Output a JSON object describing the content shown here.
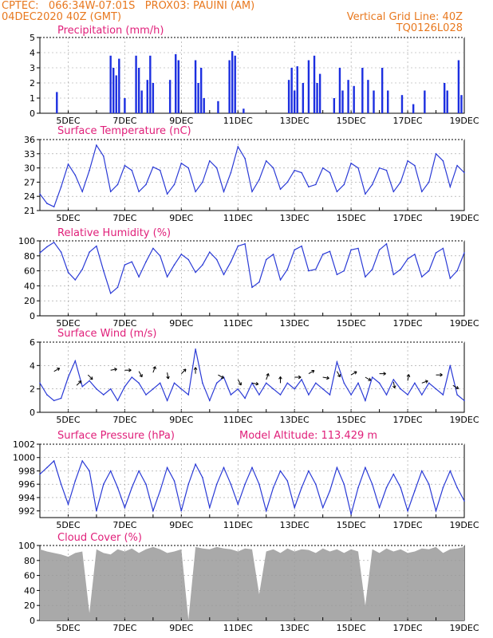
{
  "header": {
    "line1": "CPTEC:   066:34W-07:01S   PROX03: PAUINI (AM)",
    "line2": "04DEC2020 40Z (GMT)",
    "right1": "Vertical Grid Line: 40Z",
    "right2": "TQ0126L028"
  },
  "x_ticks": [
    "5DEC",
    "7DEC",
    "9DEC",
    "11DEC",
    "13DEC",
    "15DEC",
    "17DEC",
    "19DEC"
  ],
  "colors": {
    "header": "#e8781e",
    "title": "#e0207a",
    "line": "#2a3ad6",
    "bar": "#1c2fe0",
    "cloud": "#a9a9a9",
    "grid": "#9a9a9a"
  },
  "chart_data": [
    {
      "type": "bar",
      "title": "Precipitation (mm/h)",
      "ylim": [
        0,
        5
      ],
      "y_ticks": [
        0,
        1,
        2,
        3,
        4,
        5
      ],
      "events": [
        [
          4.6,
          1.4
        ],
        [
          6.5,
          3.8
        ],
        [
          6.6,
          3.0
        ],
        [
          6.7,
          2.5
        ],
        [
          6.8,
          3.6
        ],
        [
          7.0,
          1.0
        ],
        [
          7.4,
          3.8
        ],
        [
          7.5,
          3.0
        ],
        [
          7.6,
          1.5
        ],
        [
          7.8,
          2.2
        ],
        [
          7.9,
          3.8
        ],
        [
          8.0,
          2.0
        ],
        [
          8.6,
          2.2
        ],
        [
          8.8,
          3.9
        ],
        [
          8.9,
          3.5
        ],
        [
          9.5,
          3.5
        ],
        [
          9.6,
          2.0
        ],
        [
          9.7,
          3.0
        ],
        [
          9.8,
          1.0
        ],
        [
          10.3,
          0.8
        ],
        [
          10.7,
          3.5
        ],
        [
          10.8,
          4.1
        ],
        [
          10.9,
          3.8
        ],
        [
          11.2,
          0.3
        ],
        [
          12.8,
          2.2
        ],
        [
          12.9,
          3.0
        ],
        [
          13.0,
          1.5
        ],
        [
          13.1,
          3.1
        ],
        [
          13.3,
          2.0
        ],
        [
          13.5,
          3.5
        ],
        [
          13.7,
          3.8
        ],
        [
          13.8,
          2.0
        ],
        [
          13.9,
          2.6
        ],
        [
          14.4,
          1.0
        ],
        [
          14.6,
          3.0
        ],
        [
          14.7,
          1.5
        ],
        [
          14.9,
          2.2
        ],
        [
          15.1,
          1.8
        ],
        [
          15.4,
          3.0
        ],
        [
          15.6,
          2.2
        ],
        [
          15.8,
          1.5
        ],
        [
          16.1,
          3.0
        ],
        [
          16.3,
          1.5
        ],
        [
          16.8,
          1.2
        ],
        [
          17.2,
          0.6
        ],
        [
          17.6,
          1.5
        ],
        [
          18.3,
          2.0
        ],
        [
          18.4,
          1.5
        ],
        [
          18.8,
          3.5
        ],
        [
          18.9,
          1.2
        ]
      ]
    },
    {
      "type": "line",
      "title": "Surface Temperature (nC)",
      "ylim": [
        21,
        36
      ],
      "y_ticks": [
        21,
        24,
        27,
        30,
        33,
        36
      ],
      "x": [
        4.0,
        4.25,
        4.5,
        4.75,
        5.0,
        5.25,
        5.5,
        5.75,
        6.0,
        6.25,
        6.5,
        6.75,
        7.0,
        7.25,
        7.5,
        7.75,
        8.0,
        8.25,
        8.5,
        8.75,
        9.0,
        9.25,
        9.5,
        9.75,
        10.0,
        10.25,
        10.5,
        10.75,
        11.0,
        11.25,
        11.5,
        11.75,
        12.0,
        12.25,
        12.5,
        12.75,
        13.0,
        13.25,
        13.5,
        13.75,
        14.0,
        14.25,
        14.5,
        14.75,
        15.0,
        15.25,
        15.5,
        15.75,
        16.0,
        16.25,
        16.5,
        16.75,
        17.0,
        17.25,
        17.5,
        17.75,
        18.0,
        18.25,
        18.5,
        18.75,
        19.0
      ],
      "y": [
        24.5,
        22.5,
        21.8,
        26.0,
        30.8,
        28.5,
        25.0,
        29.5,
        34.8,
        32.5,
        25.0,
        26.5,
        30.5,
        29.5,
        25.0,
        26.5,
        30.2,
        29.5,
        24.5,
        26.5,
        31.0,
        30.0,
        25.0,
        27.0,
        31.5,
        30.0,
        25.0,
        29.0,
        34.5,
        32.0,
        25.0,
        27.5,
        31.5,
        30.0,
        25.5,
        27.0,
        29.5,
        29.0,
        26.0,
        26.5,
        30.0,
        29.0,
        25.0,
        26.5,
        31.0,
        30.0,
        24.5,
        26.5,
        30.0,
        29.5,
        25.0,
        27.0,
        31.5,
        30.5,
        25.0,
        27.0,
        33.0,
        31.5,
        26.0,
        30.5,
        29.0
      ]
    },
    {
      "type": "line",
      "title": "Relative Humidity (%)",
      "ylim": [
        0,
        100
      ],
      "y_ticks": [
        0,
        20,
        40,
        60,
        80,
        100
      ],
      "x": [
        4.0,
        4.25,
        4.5,
        4.75,
        5.0,
        5.25,
        5.5,
        5.75,
        6.0,
        6.25,
        6.5,
        6.75,
        7.0,
        7.25,
        7.5,
        7.75,
        8.0,
        8.25,
        8.5,
        8.75,
        9.0,
        9.25,
        9.5,
        9.75,
        10.0,
        10.25,
        10.5,
        10.75,
        11.0,
        11.25,
        11.5,
        11.75,
        12.0,
        12.25,
        12.5,
        12.75,
        13.0,
        13.25,
        13.5,
        13.75,
        14.0,
        14.25,
        14.5,
        14.75,
        15.0,
        15.25,
        15.5,
        15.75,
        16.0,
        16.25,
        16.5,
        16.75,
        17.0,
        17.25,
        17.5,
        17.75,
        18.0,
        18.25,
        18.5,
        18.75,
        19.0
      ],
      "y": [
        84,
        92,
        98,
        85,
        58,
        48,
        62,
        85,
        93,
        60,
        30,
        38,
        68,
        72,
        52,
        72,
        90,
        80,
        52,
        68,
        82,
        75,
        58,
        68,
        85,
        75,
        55,
        72,
        93,
        96,
        38,
        45,
        75,
        82,
        48,
        62,
        88,
        93,
        60,
        62,
        82,
        86,
        55,
        60,
        88,
        90,
        52,
        62,
        88,
        96,
        55,
        62,
        76,
        82,
        52,
        60,
        84,
        90,
        50,
        60,
        84
      ]
    },
    {
      "type": "line",
      "title": "Surface Wind (m/s)",
      "ylim": [
        0,
        6
      ],
      "y_ticks": [
        0,
        2,
        4,
        6
      ],
      "x": [
        4.0,
        4.25,
        4.5,
        4.75,
        5.0,
        5.25,
        5.5,
        5.75,
        6.0,
        6.25,
        6.5,
        6.75,
        7.0,
        7.25,
        7.5,
        7.75,
        8.0,
        8.25,
        8.5,
        8.75,
        9.0,
        9.25,
        9.5,
        9.75,
        10.0,
        10.25,
        10.5,
        10.75,
        11.0,
        11.25,
        11.5,
        11.75,
        12.0,
        12.25,
        12.5,
        12.75,
        13.0,
        13.25,
        13.5,
        13.75,
        14.0,
        14.25,
        14.5,
        14.75,
        15.0,
        15.25,
        15.5,
        15.75,
        16.0,
        16.25,
        16.5,
        16.75,
        17.0,
        17.25,
        17.5,
        17.75,
        18.0,
        18.25,
        18.5,
        18.75,
        19.0
      ],
      "y": [
        2.5,
        1.5,
        1.0,
        1.2,
        3.0,
        4.4,
        2.2,
        2.7,
        2.0,
        1.5,
        2.0,
        1.0,
        2.2,
        3.0,
        2.5,
        1.5,
        2.0,
        2.5,
        1.0,
        2.5,
        2.0,
        1.5,
        5.4,
        2.5,
        1.0,
        2.5,
        3.0,
        1.5,
        2.0,
        1.2,
        2.5,
        1.5,
        2.5,
        2.0,
        1.5,
        2.5,
        2.0,
        2.8,
        1.5,
        2.5,
        2.0,
        1.5,
        4.3,
        2.5,
        1.5,
        2.5,
        1.0,
        3.0,
        2.5,
        1.5,
        2.8,
        2.0,
        1.5,
        2.5,
        1.5,
        2.5,
        2.0,
        1.5,
        4.0,
        1.5,
        1.0
      ]
    },
    {
      "type": "line",
      "title": "Surface Pressure (hPa)",
      "annotation": "Model Altitude: 113.429 m",
      "ylim": [
        991,
        1002
      ],
      "y_ticks": [
        992,
        994,
        996,
        998,
        1000,
        1002
      ],
      "x": [
        4.0,
        4.25,
        4.5,
        4.75,
        5.0,
        5.25,
        5.5,
        5.75,
        6.0,
        6.25,
        6.5,
        6.75,
        7.0,
        7.25,
        7.5,
        7.75,
        8.0,
        8.25,
        8.5,
        8.75,
        9.0,
        9.25,
        9.5,
        9.75,
        10.0,
        10.25,
        10.5,
        10.75,
        11.0,
        11.25,
        11.5,
        11.75,
        12.0,
        12.25,
        12.5,
        12.75,
        13.0,
        13.25,
        13.5,
        13.75,
        14.0,
        14.25,
        14.5,
        14.75,
        15.0,
        15.25,
        15.5,
        15.75,
        16.0,
        16.25,
        16.5,
        16.75,
        17.0,
        17.25,
        17.5,
        17.75,
        18.0,
        18.25,
        18.5,
        18.75,
        19.0
      ],
      "y": [
        997.5,
        998.5,
        999.5,
        996.0,
        993.0,
        996.5,
        999.5,
        998.0,
        992.0,
        996.0,
        998.0,
        995.5,
        992.5,
        995.5,
        998.0,
        996.0,
        992.0,
        995.0,
        998.5,
        996.5,
        992.0,
        996.0,
        999.0,
        997.0,
        992.5,
        996.0,
        998.5,
        996.0,
        993.0,
        996.0,
        998.5,
        996.0,
        992.0,
        995.5,
        998.0,
        996.5,
        992.5,
        995.5,
        998.0,
        996.0,
        992.5,
        995.0,
        998.5,
        996.0,
        991.5,
        995.5,
        998.5,
        996.0,
        992.5,
        995.5,
        997.5,
        995.5,
        992.0,
        995.0,
        998.0,
        996.0,
        992.0,
        995.5,
        998.0,
        995.5,
        993.5
      ]
    },
    {
      "type": "area",
      "title": "Cloud Cover (%)",
      "ylim": [
        0,
        100
      ],
      "y_ticks": [
        0,
        20,
        40,
        60,
        80,
        100
      ],
      "x": [
        4.0,
        4.25,
        4.5,
        4.75,
        5.0,
        5.25,
        5.5,
        5.75,
        6.0,
        6.25,
        6.5,
        6.75,
        7.0,
        7.25,
        7.5,
        7.75,
        8.0,
        8.25,
        8.5,
        8.75,
        9.0,
        9.25,
        9.5,
        9.75,
        10.0,
        10.25,
        10.5,
        10.75,
        11.0,
        11.25,
        11.5,
        11.75,
        12.0,
        12.25,
        12.5,
        12.75,
        13.0,
        13.25,
        13.5,
        13.75,
        14.0,
        14.25,
        14.5,
        14.75,
        15.0,
        15.25,
        15.5,
        15.75,
        16.0,
        16.25,
        16.5,
        16.75,
        17.0,
        17.25,
        17.5,
        17.75,
        18.0,
        18.25,
        18.5,
        18.75,
        19.0
      ],
      "y": [
        95,
        92,
        90,
        88,
        85,
        90,
        92,
        10,
        95,
        90,
        88,
        95,
        92,
        96,
        90,
        95,
        98,
        95,
        90,
        92,
        95,
        1,
        98,
        96,
        95,
        98,
        96,
        95,
        92,
        96,
        95,
        35,
        92,
        95,
        90,
        96,
        92,
        95,
        94,
        90,
        96,
        92,
        95,
        90,
        95,
        92,
        20,
        95,
        90,
        96,
        92,
        95,
        90,
        92,
        96,
        95,
        98,
        90,
        95,
        96,
        98
      ]
    }
  ],
  "wind_barbs": [
    {
      "x": 4.5,
      "y": 3.5,
      "dir_deg": 60
    },
    {
      "x": 5.3,
      "y": 2.3,
      "dir_deg": 45
    },
    {
      "x": 5.7,
      "y": 3.2,
      "dir_deg": 135
    },
    {
      "x": 6.5,
      "y": 3.6,
      "dir_deg": 80
    },
    {
      "x": 7.0,
      "y": 3.6,
      "dir_deg": 90
    },
    {
      "x": 7.5,
      "y": 3.5,
      "dir_deg": 150
    },
    {
      "x": 8.0,
      "y": 3.4,
      "dir_deg": 20
    },
    {
      "x": 8.5,
      "y": 3.4,
      "dir_deg": 170
    },
    {
      "x": 9.0,
      "y": 3.3,
      "dir_deg": 45
    },
    {
      "x": 9.5,
      "y": 3.3,
      "dir_deg": 0
    },
    {
      "x": 10.3,
      "y": 3.2,
      "dir_deg": 120
    },
    {
      "x": 11.0,
      "y": 2.8,
      "dir_deg": 150
    },
    {
      "x": 11.5,
      "y": 2.5,
      "dir_deg": 100
    },
    {
      "x": 12.0,
      "y": 2.8,
      "dir_deg": 20
    },
    {
      "x": 12.5,
      "y": 2.5,
      "dir_deg": 0
    },
    {
      "x": 13.0,
      "y": 3.0,
      "dir_deg": 90
    },
    {
      "x": 13.5,
      "y": 3.3,
      "dir_deg": 60
    },
    {
      "x": 14.0,
      "y": 3.0,
      "dir_deg": 100
    },
    {
      "x": 14.5,
      "y": 3.5,
      "dir_deg": 150
    },
    {
      "x": 15.0,
      "y": 3.2,
      "dir_deg": 60
    },
    {
      "x": 15.5,
      "y": 3.0,
      "dir_deg": 120
    },
    {
      "x": 16.0,
      "y": 3.3,
      "dir_deg": 90
    },
    {
      "x": 16.5,
      "y": 2.6,
      "dir_deg": 170
    },
    {
      "x": 17.0,
      "y": 2.7,
      "dir_deg": 10
    },
    {
      "x": 17.5,
      "y": 2.5,
      "dir_deg": 70
    },
    {
      "x": 18.0,
      "y": 3.2,
      "dir_deg": 90
    },
    {
      "x": 18.6,
      "y": 2.3,
      "dir_deg": 120
    }
  ]
}
